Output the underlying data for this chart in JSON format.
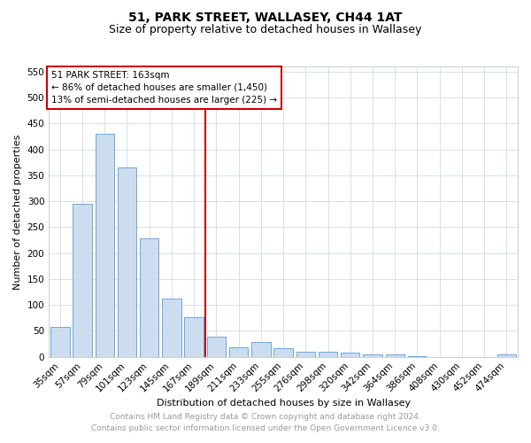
{
  "title": "51, PARK STREET, WALLASEY, CH44 1AT",
  "subtitle": "Size of property relative to detached houses in Wallasey",
  "xlabel": "Distribution of detached houses by size in Wallasey",
  "ylabel": "Number of detached properties",
  "categories": [
    "35sqm",
    "57sqm",
    "79sqm",
    "101sqm",
    "123sqm",
    "145sqm",
    "167sqm",
    "189sqm",
    "211sqm",
    "233sqm",
    "255sqm",
    "276sqm",
    "298sqm",
    "320sqm",
    "342sqm",
    "364sqm",
    "386sqm",
    "408sqm",
    "430sqm",
    "452sqm",
    "474sqm"
  ],
  "values": [
    57,
    295,
    430,
    365,
    228,
    113,
    77,
    38,
    18,
    28,
    17,
    10,
    10,
    8,
    4,
    5,
    2,
    0,
    0,
    0,
    4
  ],
  "bar_color": "#ccddf0",
  "bar_edge_color": "#5b9bd5",
  "vline_x": 6.5,
  "vline_color": "#cc0000",
  "annotation_title": "51 PARK STREET: 163sqm",
  "annotation_line1": "← 86% of detached houses are smaller (1,450)",
  "annotation_line2": "13% of semi-detached houses are larger (225) →",
  "annotation_box_color": "#cc0000",
  "ylim": [
    0,
    560
  ],
  "yticks": [
    0,
    50,
    100,
    150,
    200,
    250,
    300,
    350,
    400,
    450,
    500,
    550
  ],
  "footer_line1": "Contains HM Land Registry data © Crown copyright and database right 2024.",
  "footer_line2": "Contains public sector information licensed under the Open Government Licence v3.0.",
  "bg_color": "#ffffff",
  "grid_color": "#d0dce8",
  "title_fontsize": 10,
  "subtitle_fontsize": 9,
  "axis_label_fontsize": 8,
  "tick_fontsize": 7.5,
  "annotation_fontsize": 7.5,
  "footer_fontsize": 6.5
}
